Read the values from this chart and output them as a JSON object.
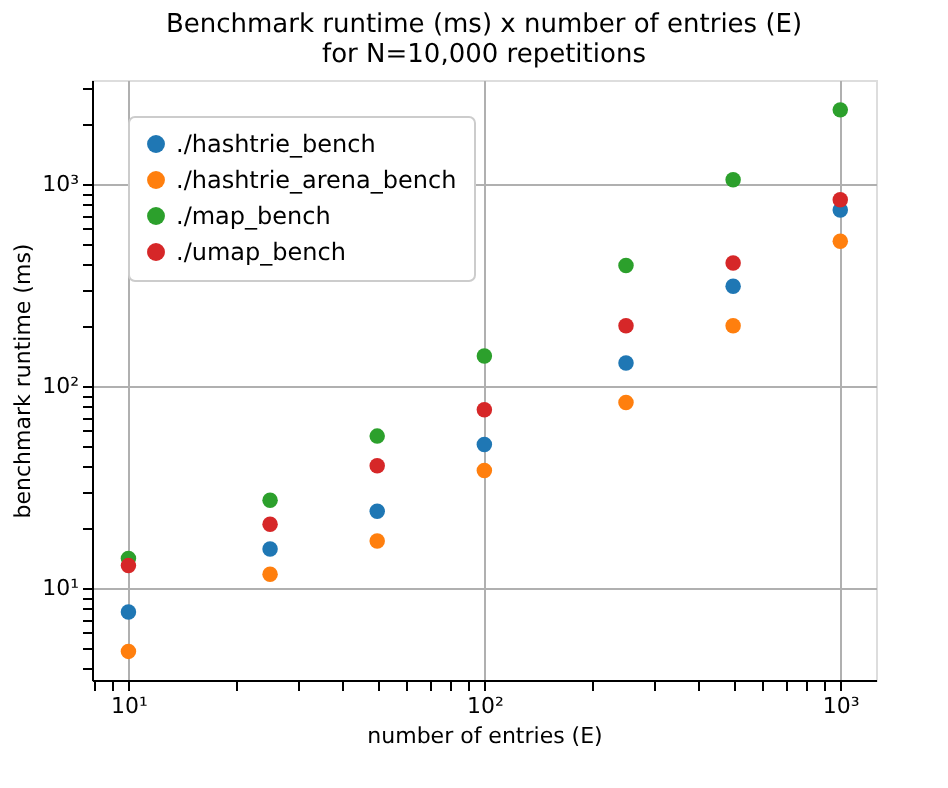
{
  "chart_data": {
    "type": "scatter",
    "title": "Benchmark runtime (ms) x number of entries (E)\nfor N=10,000 repetitions",
    "xlabel": "number of entries (E)",
    "ylabel": "benchmark runtime (ms)",
    "x": [
      10,
      25,
      50,
      100,
      250,
      500,
      1000
    ],
    "series": [
      {
        "name": "./hashtrie_bench",
        "color": "#1f77b4",
        "values": [
          7.6,
          15.6,
          24.0,
          51.3,
          130,
          312,
          745
        ]
      },
      {
        "name": "./hashtrie_arena_bench",
        "color": "#ff7f0e",
        "values": [
          4.85,
          11.7,
          17.1,
          38.2,
          82.8,
          199,
          522
        ]
      },
      {
        "name": "./map_bench",
        "color": "#2ca02c",
        "values": [
          14.0,
          27.2,
          56.5,
          141,
          395,
          1052,
          2333
        ]
      },
      {
        "name": "./umap_bench",
        "color": "#d62728",
        "values": [
          12.9,
          20.7,
          40.3,
          76.4,
          199,
          407,
          837
        ]
      }
    ],
    "log": "xy",
    "xlim": [
      7.9,
      1260
    ],
    "ylim": [
      3.5,
      3280
    ],
    "xticks": [
      {
        "value": 8,
        "label": null
      },
      {
        "value": 9,
        "label": null
      },
      {
        "value": 10,
        "label": "10¹"
      },
      {
        "value": 20,
        "label": null
      },
      {
        "value": 30,
        "label": null
      },
      {
        "value": 40,
        "label": null
      },
      {
        "value": 50,
        "label": null
      },
      {
        "value": 60,
        "label": null
      },
      {
        "value": 70,
        "label": null
      },
      {
        "value": 80,
        "label": null
      },
      {
        "value": 90,
        "label": null
      },
      {
        "value": 100,
        "label": "10²"
      },
      {
        "value": 200,
        "label": null
      },
      {
        "value": 300,
        "label": null
      },
      {
        "value": 400,
        "label": null
      },
      {
        "value": 500,
        "label": null
      },
      {
        "value": 600,
        "label": null
      },
      {
        "value": 700,
        "label": null
      },
      {
        "value": 800,
        "label": null
      },
      {
        "value": 900,
        "label": null
      },
      {
        "value": 1000,
        "label": "10³"
      }
    ],
    "yticks": [
      {
        "value": 4,
        "label": null
      },
      {
        "value": 5,
        "label": null
      },
      {
        "value": 6,
        "label": null
      },
      {
        "value": 7,
        "label": null
      },
      {
        "value": 8,
        "label": null
      },
      {
        "value": 9,
        "label": null
      },
      {
        "value": 10,
        "label": "10¹"
      },
      {
        "value": 20,
        "label": null
      },
      {
        "value": 30,
        "label": null
      },
      {
        "value": 40,
        "label": null
      },
      {
        "value": 50,
        "label": null
      },
      {
        "value": 60,
        "label": null
      },
      {
        "value": 70,
        "label": null
      },
      {
        "value": 80,
        "label": null
      },
      {
        "value": 90,
        "label": null
      },
      {
        "value": 100,
        "label": "10²"
      },
      {
        "value": 200,
        "label": null
      },
      {
        "value": 300,
        "label": null
      },
      {
        "value": 400,
        "label": null
      },
      {
        "value": 500,
        "label": null
      },
      {
        "value": 600,
        "label": null
      },
      {
        "value": 700,
        "label": null
      },
      {
        "value": 800,
        "label": null
      },
      {
        "value": 900,
        "label": null
      },
      {
        "value": 1000,
        "label": "10³"
      },
      {
        "value": 2000,
        "label": null
      },
      {
        "value": 3000,
        "label": null
      }
    ],
    "grid": true,
    "legend": "top left",
    "marker": "circle"
  }
}
